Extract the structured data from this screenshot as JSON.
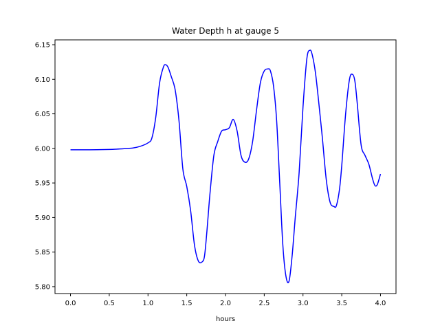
{
  "chart_data": {
    "type": "line",
    "title": "Water Depth h at gauge 5",
    "xlabel": "hours",
    "ylabel": "",
    "xlim": [
      -0.2,
      4.2
    ],
    "ylim": [
      5.79,
      6.157
    ],
    "xticks": [
      0.0,
      0.5,
      1.0,
      1.5,
      2.0,
      2.5,
      3.0,
      3.5,
      4.0
    ],
    "xtick_labels": [
      "0.0",
      "0.5",
      "1.0",
      "1.5",
      "2.0",
      "2.5",
      "3.0",
      "3.5",
      "4.0"
    ],
    "yticks": [
      5.8,
      5.85,
      5.9,
      5.95,
      6.0,
      6.05,
      6.1,
      6.15
    ],
    "ytick_labels": [
      "5.80",
      "5.85",
      "5.90",
      "5.95",
      "6.00",
      "6.05",
      "6.10",
      "6.15"
    ],
    "grid": false,
    "series": [
      {
        "color": "#0000ff",
        "x": [
          0.0,
          0.25,
          0.5,
          0.6,
          0.8,
          0.9,
          1.0,
          1.05,
          1.1,
          1.15,
          1.2,
          1.23,
          1.26,
          1.3,
          1.35,
          1.4,
          1.45,
          1.5,
          1.55,
          1.6,
          1.65,
          1.7,
          1.73,
          1.76,
          1.8,
          1.85,
          1.9,
          1.95,
          2.0,
          2.05,
          2.1,
          2.15,
          2.2,
          2.25,
          2.3,
          2.35,
          2.4,
          2.45,
          2.5,
          2.55,
          2.58,
          2.62,
          2.66,
          2.7,
          2.74,
          2.78,
          2.82,
          2.86,
          2.9,
          2.95,
          3.0,
          3.05,
          3.09,
          3.12,
          3.16,
          3.2,
          3.25,
          3.3,
          3.35,
          3.4,
          3.43,
          3.47,
          3.5,
          3.55,
          3.6,
          3.64,
          3.67,
          3.7,
          3.75,
          3.8,
          3.85,
          3.9,
          3.93,
          3.96,
          4.0
        ],
        "y": [
          5.998,
          5.998,
          5.9985,
          5.999,
          6.0005,
          6.003,
          6.008,
          6.015,
          6.045,
          6.095,
          6.118,
          6.121,
          6.117,
          6.104,
          6.085,
          6.04,
          5.97,
          5.945,
          5.91,
          5.86,
          5.837,
          5.836,
          5.845,
          5.88,
          5.935,
          5.99,
          6.01,
          6.025,
          6.027,
          6.03,
          6.042,
          6.025,
          5.99,
          5.98,
          5.985,
          6.01,
          6.055,
          6.095,
          6.112,
          6.115,
          6.112,
          6.09,
          6.04,
          5.95,
          5.86,
          5.815,
          5.808,
          5.845,
          5.9,
          5.965,
          6.06,
          6.13,
          6.142,
          6.135,
          6.11,
          6.07,
          6.015,
          5.955,
          5.922,
          5.916,
          5.917,
          5.94,
          5.975,
          6.05,
          6.1,
          6.107,
          6.097,
          6.065,
          6.005,
          5.99,
          5.977,
          5.955,
          5.946,
          5.948,
          5.963
        ]
      }
    ]
  }
}
